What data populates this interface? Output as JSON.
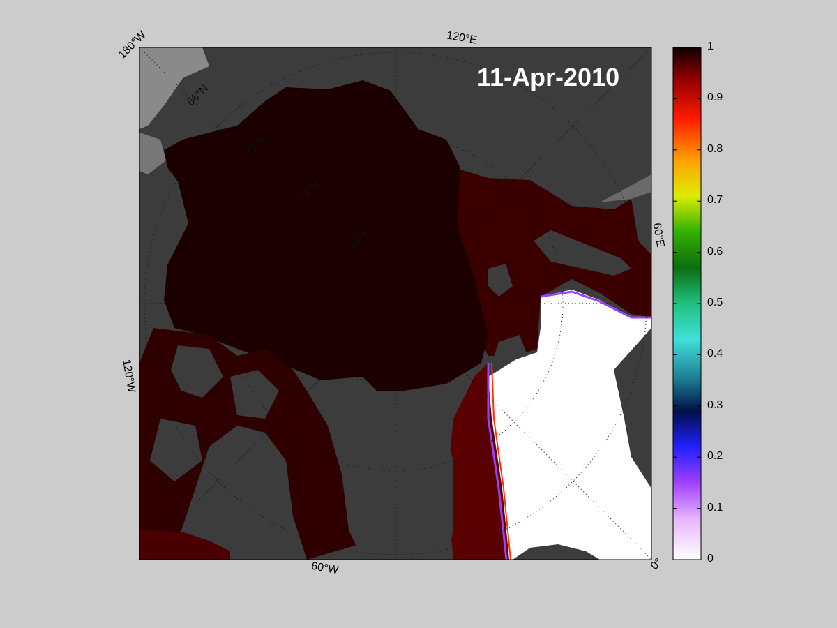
{
  "map": {
    "date_label": "11-Apr-2010",
    "longitude_labels": {
      "w180": "180°W",
      "e120": "120°E",
      "e60": "60°E",
      "w120": "120°W",
      "w60": "60°W",
      "lon0": "0°"
    },
    "latitude_labels": [
      "66°N",
      "72°N",
      "78°N",
      "84°N"
    ],
    "colors": {
      "figure_background": "#cccccc",
      "ocean_land_dark": "#3c3c3c",
      "land_mid": "#666666",
      "land_light": "#888888",
      "ice_full": "#1c0000",
      "open_water": "#ffffff"
    }
  },
  "colorbar": {
    "ticks": [
      "0",
      "0.1",
      "0.2",
      "0.3",
      "0.4",
      "0.5",
      "0.6",
      "0.7",
      "0.8",
      "0.9",
      "1"
    ],
    "range": [
      0,
      1
    ]
  }
}
